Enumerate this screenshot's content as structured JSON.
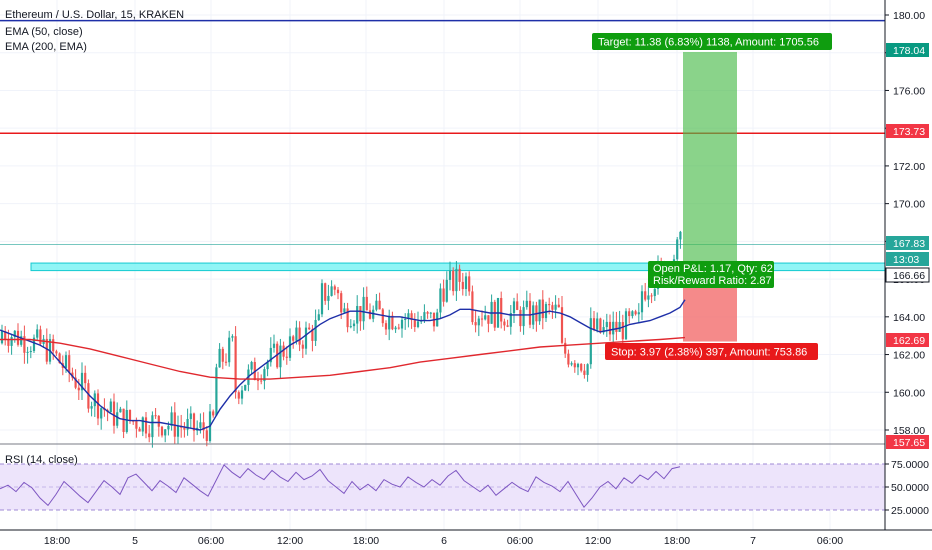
{
  "header": {
    "symbol_title": "Ethereum / U.S. Dollar, 15, KRAKEN",
    "indicator_1": "EMA (50, close)",
    "indicator_2": "EMA (200, EMA)",
    "rsi_title": "RSI (14, close)"
  },
  "price_axis": {
    "ticks": [
      "180.00",
      "178.00",
      "176.00",
      "174.00",
      "172.00",
      "170.00",
      "168.00",
      "166.00",
      "164.00",
      "162.00",
      "160.00",
      "158.00"
    ],
    "labels": [
      {
        "text": "178.04",
        "color": "#089981"
      },
      {
        "text": "173.73",
        "color": "#f23645"
      },
      {
        "text": "167.83",
        "color": "#26a69a"
      },
      {
        "text": "13:03",
        "color": "#26a69a"
      },
      {
        "text": "166.66",
        "color": "#ffffff"
      },
      {
        "text": "162.69",
        "color": "#f23645"
      },
      {
        "text": "157.65",
        "color": "#f23645"
      }
    ]
  },
  "rsi_axis": {
    "ticks": [
      "75.0000",
      "50.0000",
      "25.0000"
    ]
  },
  "time_axis": {
    "labels": [
      "18:00",
      "5",
      "06:00",
      "12:00",
      "18:00",
      "6",
      "06:00",
      "12:00",
      "18:00",
      "7",
      "06:00"
    ]
  },
  "position": {
    "target_label": "Target: 11.38 (6.83%) 1138, Amount: 1705.56",
    "stop_label": "Stop: 3.97 (2.38%) 397, Amount: 753.86",
    "pnl_label": "Open P&L: 1.17, Qty: 62",
    "rr_label": "Risk/Reward Ratio: 2.87",
    "entry": 166.66,
    "target": 178.04,
    "stop": 162.69
  },
  "chart_data": {
    "type": "line",
    "title": "Ethereum / U.S. Dollar, 15, KRAKEN",
    "ylim": [
      157.4,
      180.4
    ],
    "horizontal_levels": [
      {
        "price": 179.7,
        "color": "#1e2fa8"
      },
      {
        "price": 173.73,
        "color": "#e8191b"
      },
      {
        "price": 167.83,
        "color": "#26a69a"
      }
    ],
    "support_zone": [
      166.45,
      166.85
    ],
    "series": [
      {
        "name": "EMA (50, close)",
        "color": "#1e2fa8",
        "x": [
          0,
          10,
          20,
          30,
          40,
          50,
          60,
          70,
          80,
          90,
          100,
          110,
          120,
          130,
          140,
          150,
          160,
          170,
          180,
          190,
          200,
          210,
          220,
          230,
          240,
          250,
          260,
          270,
          280,
          290,
          300,
          310,
          320,
          330,
          340,
          350,
          360,
          370,
          380,
          390,
          400,
          410,
          420,
          430,
          440,
          450,
          460,
          470,
          480,
          490,
          500,
          510,
          520,
          530,
          540,
          550,
          560,
          570,
          580,
          590,
          600,
          610,
          620,
          630,
          640,
          650,
          660,
          670,
          680,
          685
        ],
        "y": [
          163.3,
          163.1,
          162.9,
          162.7,
          162.5,
          162.2,
          161.6,
          161.0,
          160.4,
          159.8,
          159.3,
          158.9,
          158.6,
          158.5,
          158.5,
          158.4,
          158.4,
          158.3,
          158.2,
          158.1,
          158.0,
          158.2,
          159.1,
          159.8,
          160.4,
          160.9,
          161.3,
          161.7,
          162.1,
          162.5,
          162.8,
          163.2,
          163.6,
          163.9,
          164.1,
          164.3,
          164.3,
          164.2,
          164.1,
          164.0,
          164.0,
          163.9,
          163.8,
          163.8,
          163.9,
          164.1,
          164.4,
          164.4,
          164.3,
          164.2,
          164.2,
          164.1,
          164.1,
          164.1,
          164.2,
          164.3,
          164.2,
          164.0,
          163.7,
          163.4,
          163.2,
          163.3,
          163.4,
          163.6,
          163.7,
          163.8,
          164.0,
          164.2,
          164.5,
          164.9
        ]
      },
      {
        "name": "EMA (200, EMA)",
        "color": "#e0282e",
        "x": [
          0,
          30,
          60,
          90,
          120,
          150,
          180,
          210,
          240,
          270,
          300,
          330,
          360,
          390,
          420,
          450,
          480,
          510,
          540,
          570,
          600,
          630,
          660,
          685
        ],
        "y": [
          162.8,
          162.8,
          162.6,
          162.3,
          161.9,
          161.5,
          161.1,
          160.8,
          160.7,
          160.7,
          160.8,
          160.9,
          161.1,
          161.3,
          161.6,
          161.8,
          162.0,
          162.2,
          162.4,
          162.5,
          162.6,
          162.7,
          162.8,
          162.9
        ]
      },
      {
        "name": "RSI (14, close)",
        "color": "#7e57c2",
        "x": [
          0,
          8,
          16,
          24,
          32,
          40,
          48,
          56,
          64,
          72,
          80,
          88,
          96,
          104,
          112,
          120,
          128,
          136,
          144,
          152,
          160,
          168,
          176,
          184,
          192,
          200,
          208,
          216,
          224,
          232,
          240,
          248,
          256,
          264,
          272,
          280,
          288,
          296,
          304,
          312,
          320,
          328,
          336,
          344,
          352,
          360,
          368,
          376,
          384,
          392,
          400,
          408,
          416,
          424,
          432,
          440,
          448,
          456,
          464,
          472,
          480,
          488,
          496,
          504,
          512,
          520,
          528,
          536,
          544,
          552,
          560,
          568,
          576,
          584,
          592,
          600,
          608,
          616,
          624,
          632,
          640,
          648,
          656,
          664,
          672,
          680
        ],
        "y": [
          48,
          52,
          45,
          55,
          49,
          38,
          30,
          42,
          56,
          48,
          40,
          33,
          45,
          57,
          50,
          42,
          60,
          64,
          55,
          46,
          57,
          51,
          44,
          60,
          53,
          46,
          40,
          57,
          74,
          66,
          60,
          70,
          63,
          58,
          68,
          61,
          56,
          66,
          58,
          62,
          69,
          57,
          50,
          43,
          56,
          47,
          53,
          46,
          58,
          53,
          50,
          61,
          55,
          50,
          58,
          52,
          62,
          68,
          57,
          51,
          45,
          52,
          41,
          48,
          55,
          49,
          45,
          61,
          55,
          51,
          45,
          56,
          42,
          28,
          38,
          50,
          56,
          48,
          60,
          54,
          63,
          58,
          67,
          59,
          70,
          72
        ]
      }
    ],
    "price_candles_summary": "EMA lines approximated; candles are drawn as a decorative price path"
  }
}
